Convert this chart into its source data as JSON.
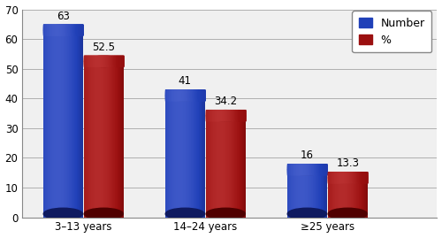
{
  "categories": [
    "3–13 years",
    "14–24 years",
    "≥25 years"
  ],
  "number_values": [
    63,
    41,
    16
  ],
  "percent_values": [
    52.5,
    34.2,
    13.3
  ],
  "number_labels": [
    "63",
    "41",
    "16"
  ],
  "percent_labels": [
    "52.5",
    "34.2",
    "13.3"
  ],
  "blue_light": "#5a6fd6",
  "blue_mid": "#2040b8",
  "blue_dark": "#1a2b8a",
  "blue_shadow": "#0f1a60",
  "red_light": "#cc4444",
  "red_mid": "#9b1010",
  "red_dark": "#7a0808",
  "red_shadow": "#500000",
  "ylim": [
    0,
    70
  ],
  "yticks": [
    0,
    10,
    20,
    30,
    40,
    50,
    60,
    70
  ],
  "legend_number_label": "Number",
  "legend_percent_label": "%",
  "background_color": "#ffffff",
  "plot_bg_color": "#f0f0f0",
  "grid_color": "#b0b0b0",
  "label_fontsize": 8.5,
  "tick_fontsize": 8.5,
  "legend_fontsize": 9
}
